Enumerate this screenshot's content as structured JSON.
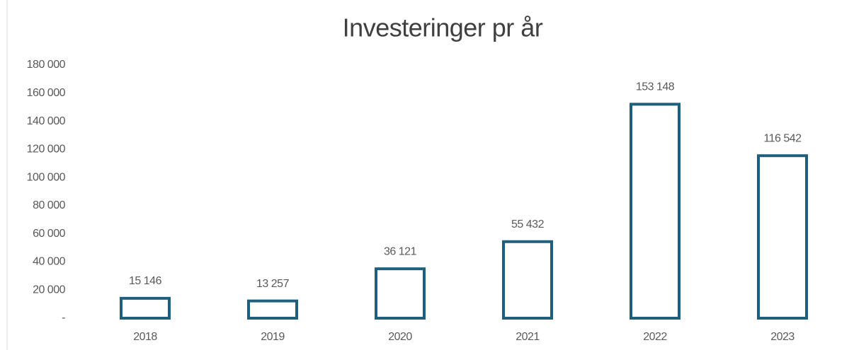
{
  "chart_data": {
    "type": "bar",
    "title": "Investeringer pr år",
    "categories": [
      "2018",
      "2019",
      "2020",
      "2021",
      "2022",
      "2023"
    ],
    "values": [
      15146,
      13257,
      36121,
      55432,
      153148,
      116542
    ],
    "value_labels": [
      "15 146",
      "13 257",
      "36 121",
      "55 432",
      "153 148",
      "116 542"
    ],
    "color": "#1f5f7e",
    "ylim": [
      0,
      180000
    ],
    "yticks": [
      {
        "value": 0,
        "label": "-"
      },
      {
        "value": 20000,
        "label": "20 000"
      },
      {
        "value": 40000,
        "label": "40 000"
      },
      {
        "value": 60000,
        "label": "60 000"
      },
      {
        "value": 80000,
        "label": "80 000"
      },
      {
        "value": 100000,
        "label": "100 000"
      },
      {
        "value": 120000,
        "label": "120 000"
      },
      {
        "value": 140000,
        "label": "140 000"
      },
      {
        "value": 160000,
        "label": "160 000"
      },
      {
        "value": 180000,
        "label": "180 000"
      }
    ],
    "grid": false
  }
}
